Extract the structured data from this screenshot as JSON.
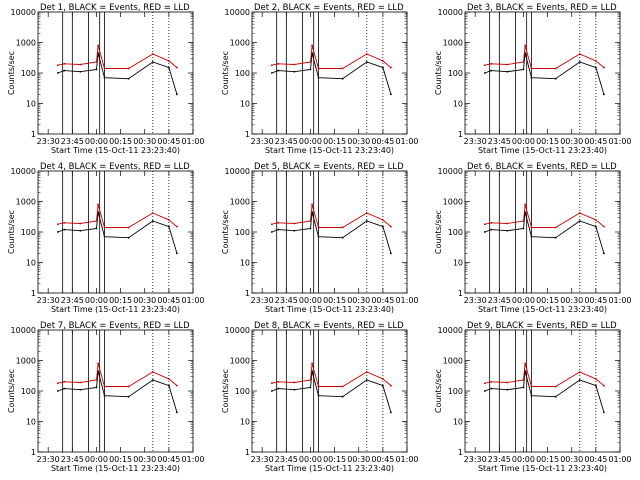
{
  "chart_data": [
    {
      "type": "line",
      "title": "Det 1, BLACK = Events, RED = LLD",
      "xlabel": "Start Time (15-Oct-11 23:23:40)",
      "ylabel": "Counts/sec",
      "ylim": [
        1,
        10000
      ],
      "yscale": "log",
      "xlim": [
        "23:23:40",
        "01:00"
      ],
      "grid": false,
      "x_tick_labels": [
        "23:30",
        "23:45",
        "00:00",
        "00:15",
        "00:30",
        "00:45",
        "01:00"
      ],
      "y_tick_labels": [
        "1",
        "10",
        "100",
        "1000",
        "10000"
      ],
      "solid_vlines": [
        "23:39",
        "23:45",
        "23:55",
        "00:02",
        "00:05"
      ],
      "dotted_vlines": [
        "00:35",
        "00:45"
      ],
      "x": [
        "23:36",
        "23:40",
        "23:50",
        "00:00",
        "00:01",
        "00:05",
        "00:20",
        "00:35",
        "00:45",
        "00:50"
      ],
      "series": [
        {
          "name": "BLACK = Events",
          "color": "#000000",
          "values": [
            100,
            120,
            110,
            130,
            450,
            70,
            65,
            230,
            150,
            20
          ]
        },
        {
          "name": "RED = LLD",
          "color": "#cc0000",
          "values": [
            180,
            200,
            190,
            230,
            800,
            140,
            140,
            420,
            250,
            150
          ]
        }
      ]
    },
    {
      "type": "line",
      "title": "Det 2, BLACK = Events, RED = LLD",
      "xlabel": "Start Time (15-Oct-11 23:23:40)",
      "ylabel": "Counts/sec",
      "ylim": [
        1,
        10000
      ],
      "yscale": "log",
      "xlim": [
        "23:23:40",
        "01:00"
      ],
      "grid": false,
      "x_tick_labels": [
        "23:30",
        "23:45",
        "00:00",
        "00:15",
        "00:30",
        "00:45",
        "01:00"
      ],
      "y_tick_labels": [
        "1",
        "10",
        "100",
        "1000",
        "10000"
      ],
      "solid_vlines": [
        "23:39",
        "23:45",
        "23:55",
        "00:02",
        "00:05"
      ],
      "dotted_vlines": [
        "00:35",
        "00:45"
      ],
      "x": [
        "23:36",
        "23:40",
        "23:50",
        "00:00",
        "00:01",
        "00:05",
        "00:20",
        "00:35",
        "00:45",
        "00:50"
      ],
      "series": [
        {
          "name": "BLACK = Events",
          "color": "#000000",
          "values": [
            100,
            120,
            110,
            130,
            450,
            70,
            65,
            230,
            150,
            20
          ]
        },
        {
          "name": "RED = LLD",
          "color": "#cc0000",
          "values": [
            180,
            200,
            190,
            230,
            800,
            140,
            140,
            420,
            250,
            150
          ]
        }
      ]
    },
    {
      "type": "line",
      "title": "Det 3, BLACK = Events, RED = LLD",
      "xlabel": "Start Time (15-Oct-11 23:23:40)",
      "ylabel": "Counts/sec",
      "ylim": [
        1,
        10000
      ],
      "yscale": "log",
      "xlim": [
        "23:23:40",
        "01:00"
      ],
      "grid": false,
      "x_tick_labels": [
        "23:30",
        "23:45",
        "00:00",
        "00:15",
        "00:30",
        "00:45",
        "01:00"
      ],
      "y_tick_labels": [
        "1",
        "10",
        "100",
        "1000",
        "10000"
      ],
      "solid_vlines": [
        "23:39",
        "23:45",
        "23:55",
        "00:02",
        "00:05"
      ],
      "dotted_vlines": [
        "00:35",
        "00:45"
      ],
      "x": [
        "23:36",
        "23:40",
        "23:50",
        "00:00",
        "00:01",
        "00:05",
        "00:20",
        "00:35",
        "00:45",
        "00:50"
      ],
      "series": [
        {
          "name": "BLACK = Events",
          "color": "#000000",
          "values": [
            100,
            120,
            110,
            130,
            450,
            70,
            65,
            230,
            150,
            20
          ]
        },
        {
          "name": "RED = LLD",
          "color": "#cc0000",
          "values": [
            180,
            200,
            190,
            230,
            800,
            140,
            140,
            420,
            250,
            150
          ]
        }
      ]
    },
    {
      "type": "line",
      "title": "Det 4, BLACK = Events, RED = LLD",
      "xlabel": "Start Time (15-Oct-11 23:23:40)",
      "ylabel": "Counts/sec",
      "ylim": [
        1,
        10000
      ],
      "yscale": "log",
      "xlim": [
        "23:23:40",
        "01:00"
      ],
      "grid": false,
      "x_tick_labels": [
        "23:30",
        "23:45",
        "00:00",
        "00:15",
        "00:30",
        "00:45",
        "01:00"
      ],
      "y_tick_labels": [
        "1",
        "10",
        "100",
        "1000",
        "10000"
      ],
      "solid_vlines": [
        "23:39",
        "23:45",
        "23:55",
        "00:02",
        "00:05"
      ],
      "dotted_vlines": [
        "00:35",
        "00:45"
      ],
      "x": [
        "23:36",
        "23:40",
        "23:50",
        "00:00",
        "00:01",
        "00:05",
        "00:20",
        "00:35",
        "00:45",
        "00:50"
      ],
      "series": [
        {
          "name": "BLACK = Events",
          "color": "#000000",
          "values": [
            100,
            120,
            110,
            130,
            450,
            70,
            65,
            230,
            150,
            20
          ]
        },
        {
          "name": "RED = LLD",
          "color": "#cc0000",
          "values": [
            180,
            200,
            190,
            230,
            800,
            140,
            140,
            420,
            250,
            150
          ]
        }
      ]
    },
    {
      "type": "line",
      "title": "Det 5, BLACK = Events, RED = LLD",
      "xlabel": "Start Time (15-Oct-11 23:23:40)",
      "ylabel": "Counts/sec",
      "ylim": [
        1,
        10000
      ],
      "yscale": "log",
      "xlim": [
        "23:23:40",
        "01:00"
      ],
      "grid": false,
      "x_tick_labels": [
        "23:30",
        "23:45",
        "00:00",
        "00:15",
        "00:30",
        "00:45",
        "01:00"
      ],
      "y_tick_labels": [
        "1",
        "10",
        "100",
        "1000",
        "10000"
      ],
      "solid_vlines": [
        "23:39",
        "23:45",
        "23:55",
        "00:02",
        "00:05"
      ],
      "dotted_vlines": [
        "00:35",
        "00:45"
      ],
      "x": [
        "23:36",
        "23:40",
        "23:50",
        "00:00",
        "00:01",
        "00:05",
        "00:20",
        "00:35",
        "00:45",
        "00:50"
      ],
      "series": [
        {
          "name": "BLACK = Events",
          "color": "#000000",
          "values": [
            100,
            120,
            110,
            130,
            450,
            70,
            65,
            230,
            150,
            20
          ]
        },
        {
          "name": "RED = LLD",
          "color": "#cc0000",
          "values": [
            180,
            200,
            190,
            230,
            800,
            140,
            140,
            420,
            250,
            150
          ]
        }
      ]
    },
    {
      "type": "line",
      "title": "Det 6, BLACK = Events, RED = LLD",
      "xlabel": "Start Time (15-Oct-11 23:23:40)",
      "ylabel": "Counts/sec",
      "ylim": [
        1,
        10000
      ],
      "yscale": "log",
      "xlim": [
        "23:23:40",
        "01:00"
      ],
      "grid": false,
      "x_tick_labels": [
        "23:30",
        "23:45",
        "00:00",
        "00:15",
        "00:30",
        "00:45",
        "01:00"
      ],
      "y_tick_labels": [
        "1",
        "10",
        "100",
        "1000",
        "10000"
      ],
      "solid_vlines": [
        "23:39",
        "23:45",
        "23:55",
        "00:02",
        "00:05"
      ],
      "dotted_vlines": [
        "00:35",
        "00:45"
      ],
      "x": [
        "23:36",
        "23:40",
        "23:50",
        "00:00",
        "00:01",
        "00:05",
        "00:20",
        "00:35",
        "00:45",
        "00:50"
      ],
      "series": [
        {
          "name": "BLACK = Events",
          "color": "#000000",
          "values": [
            100,
            120,
            110,
            130,
            450,
            70,
            65,
            230,
            150,
            20
          ]
        },
        {
          "name": "RED = LLD",
          "color": "#cc0000",
          "values": [
            180,
            200,
            190,
            230,
            800,
            140,
            140,
            420,
            250,
            150
          ]
        }
      ]
    },
    {
      "type": "line",
      "title": "Det 7, BLACK = Events, RED = LLD",
      "xlabel": "Start Time (15-Oct-11 23:23:40)",
      "ylabel": "Counts/sec",
      "ylim": [
        1,
        10000
      ],
      "yscale": "log",
      "xlim": [
        "23:23:40",
        "01:00"
      ],
      "grid": false,
      "x_tick_labels": [
        "23:30",
        "23:45",
        "00:00",
        "00:15",
        "00:30",
        "00:45",
        "01:00"
      ],
      "y_tick_labels": [
        "1",
        "10",
        "100",
        "1000",
        "10000"
      ],
      "solid_vlines": [
        "23:39",
        "23:45",
        "23:55",
        "00:02",
        "00:05"
      ],
      "dotted_vlines": [
        "00:35",
        "00:45"
      ],
      "x": [
        "23:36",
        "23:40",
        "23:50",
        "00:00",
        "00:01",
        "00:05",
        "00:20",
        "00:35",
        "00:45",
        "00:50"
      ],
      "series": [
        {
          "name": "BLACK = Events",
          "color": "#000000",
          "values": [
            100,
            120,
            110,
            130,
            450,
            70,
            65,
            230,
            150,
            20
          ]
        },
        {
          "name": "RED = LLD",
          "color": "#cc0000",
          "values": [
            180,
            200,
            190,
            230,
            800,
            140,
            140,
            420,
            250,
            150
          ]
        }
      ]
    },
    {
      "type": "line",
      "title": "Det 8, BLACK = Events, RED = LLD",
      "xlabel": "Start Time (15-Oct-11 23:23:40)",
      "ylabel": "Counts/sec",
      "ylim": [
        1,
        10000
      ],
      "yscale": "log",
      "xlim": [
        "23:23:40",
        "01:00"
      ],
      "grid": false,
      "x_tick_labels": [
        "23:30",
        "23:45",
        "00:00",
        "00:15",
        "00:30",
        "00:45",
        "01:00"
      ],
      "y_tick_labels": [
        "1",
        "10",
        "100",
        "1000",
        "10000"
      ],
      "solid_vlines": [
        "23:39",
        "23:45",
        "23:55",
        "00:02",
        "00:05"
      ],
      "dotted_vlines": [
        "00:35",
        "00:45"
      ],
      "x": [
        "23:36",
        "23:40",
        "23:50",
        "00:00",
        "00:01",
        "00:05",
        "00:20",
        "00:35",
        "00:45",
        "00:50"
      ],
      "series": [
        {
          "name": "BLACK = Events",
          "color": "#000000",
          "values": [
            100,
            120,
            110,
            130,
            450,
            70,
            65,
            230,
            150,
            20
          ]
        },
        {
          "name": "RED = LLD",
          "color": "#cc0000",
          "values": [
            180,
            200,
            190,
            230,
            800,
            140,
            140,
            420,
            250,
            150
          ]
        }
      ]
    },
    {
      "type": "line",
      "title": "Det 9, BLACK = Events, RED = LLD",
      "xlabel": "Start Time (15-Oct-11 23:23:40)",
      "ylabel": "Counts/sec",
      "ylim": [
        1,
        10000
      ],
      "yscale": "log",
      "xlim": [
        "23:23:40",
        "01:00"
      ],
      "grid": false,
      "x_tick_labels": [
        "23:30",
        "23:45",
        "00:00",
        "00:15",
        "00:30",
        "00:45",
        "01:00"
      ],
      "y_tick_labels": [
        "1",
        "10",
        "100",
        "1000",
        "10000"
      ],
      "solid_vlines": [
        "23:39",
        "23:45",
        "23:55",
        "00:02",
        "00:05"
      ],
      "dotted_vlines": [
        "00:35",
        "00:45"
      ],
      "x": [
        "23:36",
        "23:40",
        "23:50",
        "00:00",
        "00:01",
        "00:05",
        "00:20",
        "00:35",
        "00:45",
        "00:50"
      ],
      "series": [
        {
          "name": "BLACK = Events",
          "color": "#000000",
          "values": [
            100,
            120,
            110,
            130,
            450,
            70,
            65,
            230,
            150,
            20
          ]
        },
        {
          "name": "RED = LLD",
          "color": "#cc0000",
          "values": [
            180,
            200,
            190,
            230,
            800,
            140,
            140,
            420,
            250,
            150
          ]
        }
      ]
    }
  ]
}
